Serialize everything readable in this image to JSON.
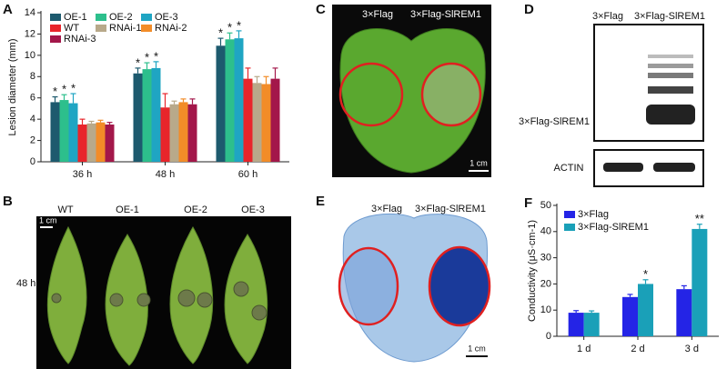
{
  "panel_labels": [
    "A",
    "B",
    "C",
    "D",
    "E",
    "F"
  ],
  "chart_data": [
    {
      "type": "bar",
      "y_label": "Lesion diameter (mm)",
      "categories": [
        "36 h",
        "48 h",
        "60 h"
      ],
      "ylim": [
        0,
        14
      ],
      "yticks": [
        0,
        2,
        4,
        6,
        8,
        10,
        12,
        14
      ],
      "series": [
        {
          "name": "OE-1",
          "color": "#1d5a6e",
          "values": [
            5.6,
            8.3,
            10.9
          ],
          "errors": [
            0.5,
            0.5,
            0.7
          ],
          "significance": [
            "*",
            "*",
            "*"
          ]
        },
        {
          "name": "OE-2",
          "color": "#2dbf8c",
          "values": [
            5.8,
            8.7,
            11.5
          ],
          "errors": [
            0.5,
            0.6,
            0.6
          ],
          "significance": [
            "*",
            "*",
            "*"
          ]
        },
        {
          "name": "OE-3",
          "color": "#1fa5c3",
          "values": [
            5.5,
            8.8,
            11.6
          ],
          "errors": [
            0.9,
            0.6,
            0.7
          ],
          "significance": [
            "*",
            "*",
            "*"
          ]
        },
        {
          "name": "WT",
          "color": "#e8252b",
          "values": [
            3.5,
            5.1,
            7.8
          ],
          "errors": [
            0.5,
            1.3,
            1.0
          ]
        },
        {
          "name": "RNAi-1",
          "color": "#b8a98a",
          "values": [
            3.6,
            5.4,
            7.4
          ],
          "errors": [
            0.2,
            0.3,
            0.6
          ]
        },
        {
          "name": "RNAi-2",
          "color": "#f28c28",
          "values": [
            3.7,
            5.6,
            7.3
          ],
          "errors": [
            0.2,
            0.3,
            0.7
          ]
        },
        {
          "name": "RNAi-3",
          "color": "#a3174a",
          "values": [
            3.5,
            5.4,
            7.8
          ],
          "errors": [
            0.2,
            0.5,
            1.0
          ]
        }
      ]
    },
    {
      "type": "bar",
      "y_label": "Conductivity (μS·cm-1)",
      "categories": [
        "1 d",
        "2 d",
        "3 d"
      ],
      "ylim": [
        0,
        50
      ],
      "yticks": [
        0,
        10,
        20,
        30,
        40,
        50
      ],
      "series": [
        {
          "name": "3×Flag",
          "color": "#2424e6",
          "values": [
            9,
            15,
            18
          ],
          "errors": [
            0.8,
            1.0,
            1.3
          ],
          "significance": [
            null,
            null,
            null
          ]
        },
        {
          "name": "3×Flag-SlREM1",
          "color": "#1aa0b8",
          "values": [
            9,
            20,
            41
          ],
          "errors": [
            0.7,
            1.6,
            1.8
          ],
          "significance": [
            null,
            "*",
            "**"
          ]
        }
      ]
    }
  ],
  "photos": {
    "B": {
      "labels": [
        "WT",
        "OE-1",
        "OE-2",
        "OE-3"
      ],
      "row_label": "48 h",
      "scale_bar": "1 cm"
    },
    "C": {
      "labels": [
        "3×Flag",
        "3×Flag-SlREM1"
      ],
      "scale_bar": "1 cm"
    },
    "D": {
      "labels": [
        "3×Flag",
        "3×Flag-SlREM1"
      ],
      "band_labels": [
        "3×Flag-SlREM1",
        "ACTIN"
      ]
    },
    "E": {
      "labels": [
        "3×Flag",
        "3×Flag-SlREM1"
      ],
      "scale_bar": "1 cm"
    }
  }
}
